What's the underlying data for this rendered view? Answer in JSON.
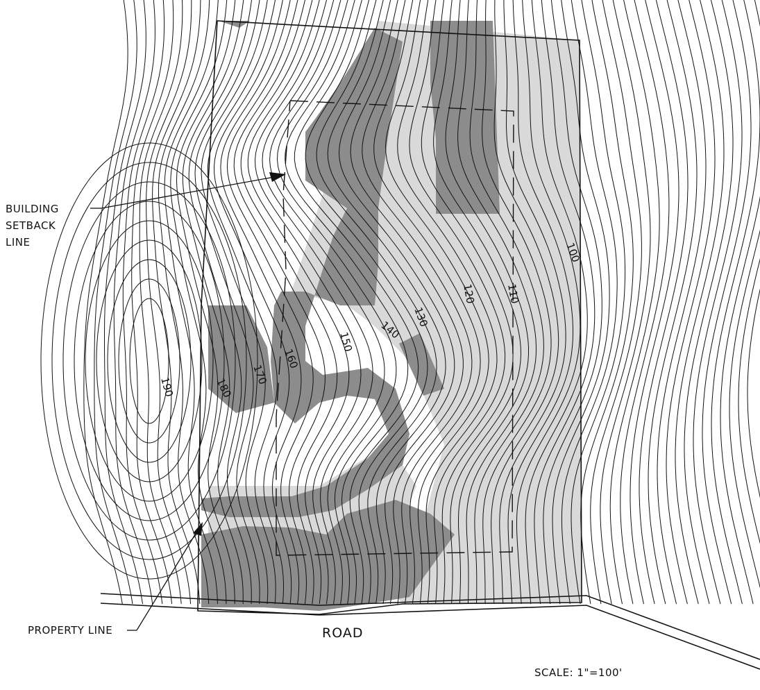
{
  "callouts": {
    "building_setback": [
      "BUILDING",
      "SETBACK",
      "LINE"
    ],
    "property_line": "PROPERTY LINE",
    "road": "ROAD",
    "scale": "SCALE:  1\"=100'"
  },
  "contour_labels": [
    "190",
    "180",
    "170",
    "160",
    "150",
    "140",
    "130",
    "120",
    "110",
    "100"
  ],
  "colors": {
    "line": "#111111",
    "shade_light": "#d9d9d9",
    "shade_dark": "#8c8c8c",
    "background": "#ffffff"
  }
}
